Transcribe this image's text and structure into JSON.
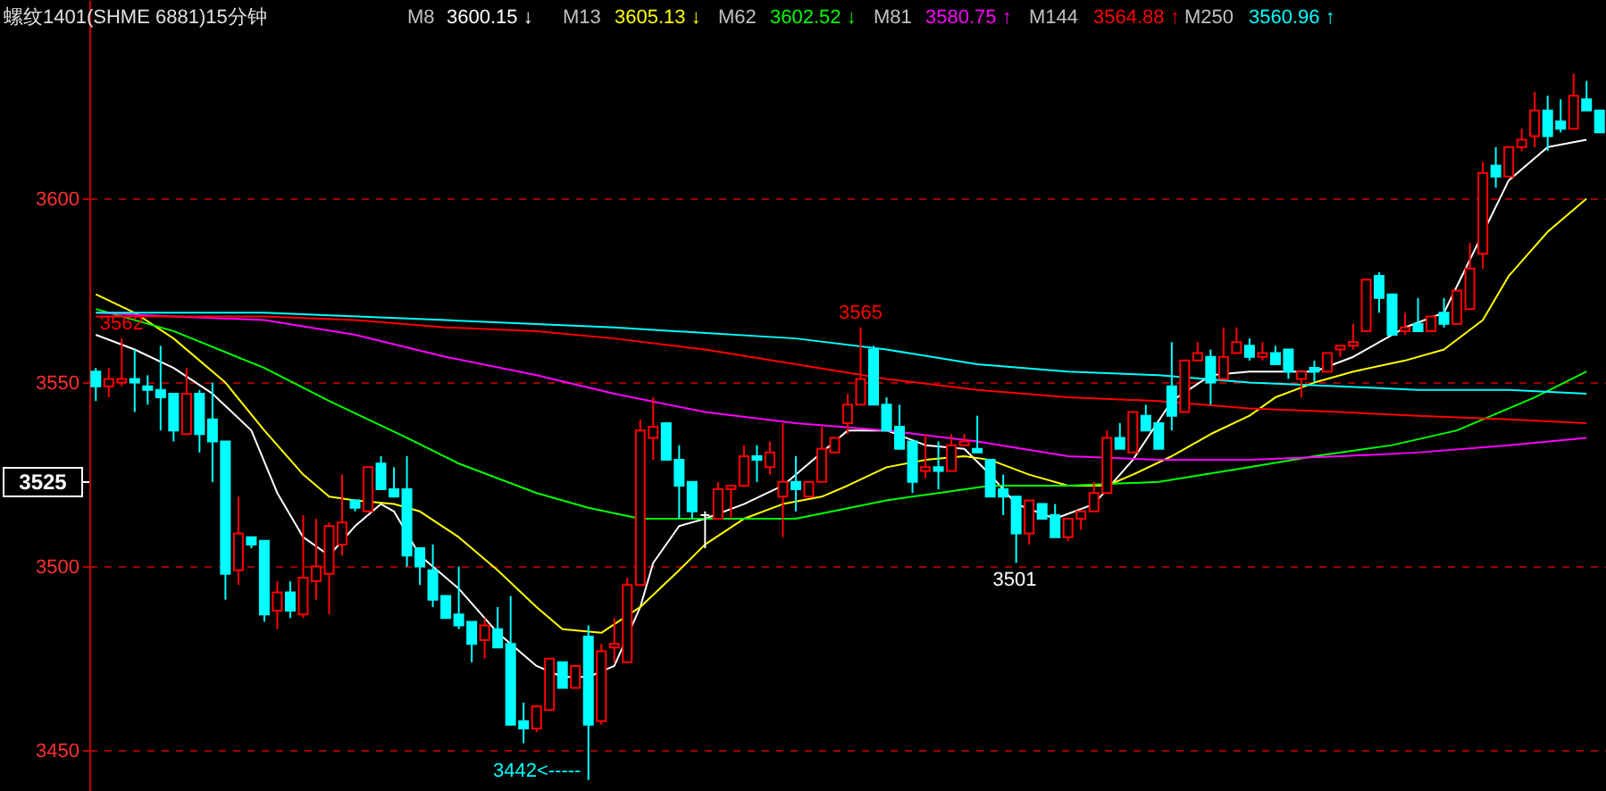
{
  "chart_data": {
    "type": "candlestick",
    "title": "螺纹1401(SHME 6881)15分钟",
    "categories": [
      null,
      null,
      null,
      null,
      null,
      null,
      null,
      null,
      null,
      null,
      null,
      null,
      null,
      null,
      null,
      null,
      null,
      null,
      null,
      null,
      null,
      null,
      null,
      null,
      null,
      null,
      null,
      null,
      null,
      null,
      null,
      null,
      null,
      null,
      null,
      null,
      null,
      null,
      null,
      null,
      null,
      null,
      null,
      null,
      null,
      null,
      null,
      null,
      null,
      null,
      null,
      null,
      null,
      null,
      null,
      null,
      null,
      null,
      null,
      null,
      null,
      null,
      null,
      null,
      null,
      null,
      null,
      null,
      null,
      null,
      null,
      null,
      null,
      null,
      null,
      null,
      null,
      null,
      null,
      null,
      null,
      null,
      null,
      null,
      null,
      null,
      null,
      null,
      null,
      null,
      null,
      null,
      null,
      null,
      null,
      null,
      null,
      null,
      null,
      null,
      null,
      null,
      null,
      null,
      null,
      null,
      null,
      null,
      null,
      null,
      null,
      null,
      null,
      null,
      null,
      null,
      null
    ],
    "ohlc": [
      [
        3553,
        3554,
        3545,
        3549
      ],
      [
        3549,
        3554,
        3546,
        3551
      ],
      [
        3550,
        3562,
        3549,
        3551
      ],
      [
        3551,
        3559,
        3542,
        3550
      ],
      [
        3549,
        3552,
        3544,
        3548
      ],
      [
        3548,
        3560,
        3537,
        3546
      ],
      [
        3547,
        3547,
        3534,
        3537
      ],
      [
        3536,
        3554,
        3536,
        3547
      ],
      [
        3547,
        3548,
        3531,
        3536
      ],
      [
        3540,
        3550,
        3523,
        3534
      ],
      [
        3534,
        3534,
        3491,
        3498
      ],
      [
        3499,
        3519,
        3495,
        3509
      ],
      [
        3508,
        3508,
        3505,
        3506
      ],
      [
        3507,
        3507,
        3485,
        3487
      ],
      [
        3488,
        3496,
        3483,
        3493
      ],
      [
        3493,
        3496,
        3486,
        3488
      ],
      [
        3487,
        3514,
        3486,
        3497
      ],
      [
        3496,
        3513,
        3491,
        3500
      ],
      [
        3498,
        3512,
        3487,
        3511
      ],
      [
        3506,
        3525,
        3503,
        3512
      ],
      [
        3518,
        3518,
        3515,
        3516
      ],
      [
        3515,
        3527,
        3515,
        3527
      ],
      [
        3528,
        3530,
        3521,
        3521
      ],
      [
        3521,
        3527,
        3519,
        3519
      ],
      [
        3521,
        3530,
        3500,
        3503
      ],
      [
        3505,
        3505,
        3495,
        3500
      ],
      [
        3499,
        3506,
        3489,
        3491
      ],
      [
        3492,
        3492,
        3486,
        3486
      ],
      [
        3487,
        3500,
        3483,
        3484
      ],
      [
        3485,
        3485,
        3474,
        3479
      ],
      [
        3480,
        3486,
        3475,
        3484
      ],
      [
        3483,
        3489,
        3478,
        3478
      ],
      [
        3479,
        3492,
        3457,
        3457
      ],
      [
        3458,
        3463,
        3452,
        3456
      ],
      [
        3456,
        3462,
        3455,
        3462
      ],
      [
        3461,
        3475,
        3461,
        3475
      ],
      [
        3474,
        3474,
        3467,
        3467
      ],
      [
        3467,
        3473,
        3467,
        3473
      ],
      [
        3481,
        3484,
        3442,
        3457
      ],
      [
        3458,
        3479,
        3457,
        3477
      ],
      [
        3478,
        3486,
        3474,
        3479
      ],
      [
        3474,
        3497,
        3474,
        3495
      ],
      [
        3495,
        3540,
        3495,
        3537
      ],
      [
        3535,
        3546,
        3529,
        3538
      ],
      [
        3539,
        3539,
        3529,
        3529
      ],
      [
        3529,
        3533,
        3513,
        3522
      ],
      [
        3523,
        3523,
        3513,
        3515
      ],
      [
        3514,
        3515,
        3505,
        3514
      ],
      [
        3513,
        3523,
        3513,
        3521
      ],
      [
        3521,
        3522,
        3513,
        3522
      ],
      [
        3522,
        3533,
        3522,
        3530
      ],
      [
        3530,
        3533,
        3523,
        3529
      ],
      [
        3527,
        3534,
        3525,
        3531
      ],
      [
        3519,
        3539,
        3508,
        3523
      ],
      [
        3523,
        3530,
        3515,
        3521
      ],
      [
        3519,
        3523,
        3519,
        3523
      ],
      [
        3523,
        3538,
        3523,
        3532
      ],
      [
        3531,
        3535,
        3531,
        3535
      ],
      [
        3539,
        3547,
        3536,
        3544
      ],
      [
        3544,
        3565,
        3544,
        3551
      ],
      [
        3559,
        3560,
        3544,
        3544
      ],
      [
        3544,
        3546,
        3537,
        3537
      ],
      [
        3538,
        3544,
        3532,
        3532
      ],
      [
        3534,
        3534,
        3520,
        3523
      ],
      [
        3526,
        3536,
        3524,
        3527
      ],
      [
        3527,
        3534,
        3521,
        3526
      ],
      [
        3526,
        3536,
        3526,
        3533
      ],
      [
        3533,
        3536,
        3533,
        3534
      ],
      [
        3532,
        3541,
        3531,
        3531
      ],
      [
        3529,
        3529,
        3519,
        3519
      ],
      [
        3521,
        3525,
        3514,
        3519
      ],
      [
        3519,
        3519,
        3501,
        3509
      ],
      [
        3509,
        3518,
        3506,
        3518
      ],
      [
        3517,
        3517,
        3513,
        3513
      ],
      [
        3514,
        3517,
        3508,
        3508
      ],
      [
        3508,
        3513,
        3507,
        3513
      ],
      [
        3513,
        3515,
        3510,
        3515
      ],
      [
        3515,
        3523,
        3515,
        3520
      ],
      [
        3520,
        3537,
        3520,
        3535
      ],
      [
        3535,
        3539,
        3532,
        3532
      ],
      [
        3531,
        3542,
        3531,
        3542
      ],
      [
        3541,
        3544,
        3537,
        3537
      ],
      [
        3539,
        3539,
        3532,
        3532
      ],
      [
        3549,
        3561,
        3537,
        3541
      ],
      [
        3542,
        3556,
        3542,
        3556
      ],
      [
        3556,
        3561,
        3556,
        3558
      ],
      [
        3557,
        3559,
        3544,
        3550
      ],
      [
        3551,
        3565,
        3551,
        3557
      ],
      [
        3558,
        3565,
        3558,
        3561
      ],
      [
        3560,
        3562,
        3556,
        3557
      ],
      [
        3557,
        3561,
        3556,
        3558
      ],
      [
        3558,
        3560,
        3555,
        3555
      ],
      [
        3559,
        3559,
        3551,
        3553
      ],
      [
        3551,
        3553,
        3546,
        3553
      ],
      [
        3554,
        3556,
        3550,
        3553
      ],
      [
        3553,
        3558,
        3553,
        3558
      ],
      [
        3559,
        3560,
        3557,
        3560
      ],
      [
        3560,
        3566,
        3559,
        3561
      ],
      [
        3564,
        3578,
        3564,
        3578
      ],
      [
        3579,
        3580,
        3569,
        3573
      ],
      [
        3574,
        3574,
        3563,
        3563
      ],
      [
        3564,
        3569,
        3563,
        3565
      ],
      [
        3566,
        3573,
        3564,
        3564
      ],
      [
        3564,
        3568,
        3564,
        3568
      ],
      [
        3569,
        3573,
        3565,
        3566
      ],
      [
        3566,
        3575,
        3566,
        3575
      ],
      [
        3570,
        3588,
        3570,
        3581
      ],
      [
        3585,
        3610,
        3581,
        3607
      ],
      [
        3609,
        3614,
        3603,
        3606
      ],
      [
        3606,
        3614,
        3606,
        3614
      ],
      [
        3614,
        3619,
        3613,
        3616
      ],
      [
        3617,
        3629,
        3614,
        3624
      ],
      [
        3624,
        3628,
        3613,
        3617
      ],
      [
        3621,
        3627,
        3618,
        3619
      ],
      [
        3619,
        3634,
        3619,
        3628
      ],
      [
        3627,
        3632,
        3624,
        3624
      ],
      [
        3624,
        3624,
        3618,
        3618
      ]
    ],
    "colors": [
      "#00ffff",
      "#ff0000",
      "#ff0000",
      "#00ffff",
      "#00ffff",
      "#00ffff",
      "#00ffff",
      "#ff0000",
      "#00ffff",
      "#00ffff",
      "#00ffff",
      "#ff0000",
      "#00ffff",
      "#00ffff",
      "#ff0000",
      "#00ffff",
      "#ff0000",
      "#ff0000",
      "#ff0000",
      "#ff0000",
      "#00ffff",
      "#ff0000",
      "#00ffff",
      "#00ffff",
      "#00ffff",
      "#00ffff",
      "#00ffff",
      "#00ffff",
      "#00ffff",
      "#00ffff",
      "#ff0000",
      "#00ffff",
      "#00ffff",
      "#00ffff",
      "#ff0000",
      "#ff0000",
      "#00ffff",
      "#ff0000",
      "#00ffff",
      "#ff0000",
      "#ff0000",
      "#ff0000",
      "#ff0000",
      "#ff0000",
      "#00ffff",
      "#00ffff",
      "#00ffff",
      "#ffffff",
      "#ff0000",
      "#ff0000",
      "#ff0000",
      "#00ffff",
      "#ff0000",
      "#ff0000",
      "#00ffff",
      "#ff0000",
      "#ff0000",
      "#ff0000",
      "#ff0000",
      "#ff0000",
      "#00ffff",
      "#00ffff",
      "#00ffff",
      "#00ffff",
      "#ff0000",
      "#00ffff",
      "#ff0000",
      "#ff0000",
      "#00ffff",
      "#00ffff",
      "#00ffff",
      "#00ffff",
      "#ff0000",
      "#00ffff",
      "#00ffff",
      "#ff0000",
      "#ff0000",
      "#ff0000",
      "#ff0000",
      "#00ffff",
      "#ff0000",
      "#00ffff",
      "#00ffff",
      "#00ffff",
      "#ff0000",
      "#ff0000",
      "#00ffff",
      "#ff0000",
      "#ff0000",
      "#00ffff",
      "#ff0000",
      "#00ffff",
      "#00ffff",
      "#ff0000",
      "#00ffff",
      "#ff0000",
      "#ff0000",
      "#ff0000",
      "#ff0000",
      "#00ffff",
      "#00ffff",
      "#ff0000",
      "#00ffff",
      "#ff0000",
      "#00ffff",
      "#ff0000",
      "#ff0000",
      "#ff0000",
      "#00ffff",
      "#ff0000",
      "#ff0000",
      "#ff0000",
      "#00ffff",
      "#00ffff",
      "#ff0000",
      "#00ffff",
      "#00ffff"
    ],
    "series": [
      {
        "type": "line",
        "color": "#ffffff",
        "values": [
          3563,
          null,
          null,
          3559,
          null,
          null,
          3554,
          null,
          null,
          3547,
          null,
          null,
          3537,
          null,
          3520,
          null,
          3508,
          null,
          3503,
          null,
          3511,
          null,
          3517,
          3515,
          null,
          3503,
          null,
          null,
          3494,
          null,
          null,
          3482,
          null,
          null,
          3473,
          null,
          3470,
          null,
          3470,
          null,
          3473,
          null,
          3489,
          3501,
          null,
          3511,
          null,
          3513,
          null,
          null,
          3517,
          null,
          null,
          3522,
          null,
          null,
          3531,
          null,
          3537,
          null,
          null,
          3537,
          null,
          null,
          3533,
          null,
          null,
          3532,
          null,
          3525,
          null,
          3517,
          null,
          null,
          3513,
          null,
          null,
          3517,
          null,
          null,
          3529,
          null,
          null,
          3545,
          null,
          null,
          3552,
          null,
          null,
          3553,
          null,
          3553,
          null,
          null,
          3553,
          null,
          null,
          3557,
          null,
          null,
          null,
          3565,
          null,
          null,
          3569,
          null,
          null,
          null,
          null,
          3605,
          null,
          null,
          3614,
          null,
          null,
          3616,
          null
        ]
      },
      {
        "type": "line",
        "color": "#ffff00",
        "values": [
          3574,
          null,
          null,
          3569,
          null,
          null,
          3562,
          null,
          null,
          null,
          3550,
          null,
          null,
          3537,
          null,
          null,
          3525,
          null,
          3519,
          null,
          3518,
          null,
          null,
          3517,
          null,
          3515,
          null,
          null,
          3508,
          null,
          null,
          3499,
          null,
          null,
          3489,
          null,
          3483,
          null,
          null,
          3482,
          null,
          null,
          3489,
          null,
          null,
          3499,
          null,
          3506,
          null,
          null,
          3513,
          null,
          null,
          3517,
          null,
          null,
          3519,
          null,
          3522,
          null,
          null,
          3527,
          null,
          null,
          3529,
          null,
          null,
          3530,
          null,
          3529,
          null,
          null,
          3525,
          null,
          null,
          3522,
          null,
          null,
          3522,
          null,
          3525,
          null,
          null,
          3530,
          null,
          null,
          3536,
          null,
          null,
          3541,
          null,
          3546,
          null,
          null,
          3550,
          null,
          null,
          3553,
          null,
          null,
          null,
          3556,
          null,
          null,
          3559,
          null,
          null,
          3567,
          null,
          3579,
          null,
          null,
          3591,
          null,
          null,
          3600,
          null
        ]
      },
      {
        "type": "line",
        "color": "#00ff00",
        "values": [
          3570,
          null,
          null,
          null,
          null,
          null,
          3564,
          null,
          null,
          null,
          null,
          null,
          null,
          3554,
          null,
          null,
          null,
          null,
          3545,
          null,
          null,
          null,
          null,
          null,
          3535,
          null,
          null,
          null,
          3528,
          null,
          null,
          null,
          null,
          null,
          3520,
          null,
          null,
          null,
          3516,
          null,
          null,
          null,
          3513,
          null,
          null,
          null,
          null,
          3513,
          null,
          null,
          null,
          null,
          null,
          null,
          3513,
          null,
          null,
          null,
          null,
          null,
          null,
          3518,
          null,
          null,
          null,
          3520,
          null,
          null,
          null,
          3522,
          null,
          null,
          null,
          null,
          null,
          3522,
          null,
          null,
          null,
          null,
          null,
          null,
          3523,
          null,
          null,
          null,
          null,
          null,
          null,
          3527,
          null,
          null,
          null,
          null,
          3530,
          null,
          null,
          null,
          null,
          null,
          3533,
          null,
          null,
          null,
          null,
          3537,
          null,
          null,
          null,
          null,
          null,
          3546,
          null,
          null,
          null,
          3553,
          null
        ]
      },
      {
        "type": "line",
        "color": "#ff00ff",
        "values": [
          3569,
          null,
          null,
          null,
          null,
          null,
          3568,
          null,
          null,
          null,
          null,
          null,
          null,
          3567,
          null,
          null,
          null,
          null,
          null,
          null,
          3563,
          null,
          null,
          null,
          null,
          null,
          null,
          3557,
          null,
          null,
          null,
          null,
          null,
          null,
          3552,
          null,
          null,
          null,
          null,
          null,
          3547,
          null,
          null,
          null,
          null,
          null,
          null,
          3542,
          null,
          null,
          null,
          null,
          null,
          null,
          3539,
          null,
          null,
          null,
          null,
          null,
          null,
          3537,
          null,
          null,
          null,
          null,
          null,
          null,
          3534,
          null,
          null,
          null,
          null,
          null,
          null,
          3530,
          null,
          null,
          null,
          null,
          null,
          null,
          3529,
          null,
          null,
          null,
          null,
          null,
          null,
          3529,
          null,
          null,
          null,
          null,
          null,
          null,
          3530,
          null,
          null,
          null,
          null,
          null,
          3531,
          null,
          null,
          null,
          null,
          null,
          null,
          3533,
          null,
          null,
          null,
          null,
          null,
          3535,
          null
        ]
      },
      {
        "type": "line",
        "color": "#ff0000",
        "values": [
          3568,
          null,
          null,
          null,
          null,
          null,
          3568,
          null,
          null,
          null,
          null,
          null,
          null,
          3568,
          null,
          null,
          null,
          null,
          null,
          null,
          3567,
          null,
          null,
          null,
          null,
          null,
          null,
          3565,
          null,
          null,
          null,
          null,
          null,
          null,
          3564,
          null,
          null,
          null,
          null,
          null,
          3562,
          null,
          null,
          null,
          null,
          null,
          null,
          3559,
          null,
          null,
          null,
          null,
          null,
          null,
          3555,
          null,
          null,
          null,
          null,
          null,
          null,
          3551,
          null,
          null,
          null,
          null,
          null,
          null,
          3548,
          null,
          null,
          null,
          null,
          null,
          null,
          3546,
          null,
          null,
          null,
          null,
          null,
          null,
          3545,
          null,
          null,
          null,
          null,
          null,
          null,
          3543,
          null,
          null,
          null,
          null,
          null,
          null,
          3542,
          null,
          null,
          null,
          null,
          null,
          3541,
          null,
          null,
          null,
          null,
          null,
          null,
          3540,
          null,
          null,
          null,
          null,
          null,
          3539,
          null
        ]
      },
      {
        "type": "line",
        "color": "#00ffff",
        "values": [
          3569,
          null,
          null,
          null,
          null,
          null,
          null,
          null,
          null,
          null,
          null,
          null,
          null,
          3569,
          null,
          null,
          null,
          null,
          null,
          null,
          null,
          null,
          null,
          null,
          null,
          null,
          null,
          3567,
          null,
          null,
          null,
          null,
          null,
          null,
          null,
          null,
          null,
          null,
          null,
          null,
          3565,
          null,
          null,
          null,
          null,
          null,
          null,
          null,
          null,
          null,
          null,
          null,
          null,
          null,
          3562,
          null,
          null,
          null,
          null,
          null,
          null,
          3559,
          null,
          null,
          null,
          null,
          null,
          null,
          3555,
          null,
          null,
          null,
          null,
          null,
          null,
          3553,
          null,
          null,
          null,
          null,
          null,
          null,
          3552,
          null,
          null,
          null,
          null,
          null,
          null,
          3550,
          null,
          null,
          null,
          null,
          null,
          null,
          3549,
          null,
          null,
          null,
          null,
          null,
          3548,
          null,
          null,
          null,
          null,
          null,
          null,
          3548,
          null,
          null,
          null,
          null,
          null,
          3547,
          null
        ]
      }
    ],
    "annotations": [
      "M8",
      "3600.15 ↓",
      "M13",
      "3605.13 ↓",
      "M62",
      "3602.52 ↓",
      "M81",
      "3580.75 ↑",
      "M144",
      "3564.88 ↑",
      "M250",
      "3560.96 ↑",
      {
        "text": "3562",
        "y": 3562
      },
      {
        "text": "3565",
        "y": 3565
      },
      "3501",
      "3442<-----",
      "3525"
    ],
    "ylim": [
      3439,
      3654
    ],
    "yticks": [
      3450,
      3500,
      3550,
      3600
    ],
    "tick_labels": "y",
    "grid": "y"
  }
}
